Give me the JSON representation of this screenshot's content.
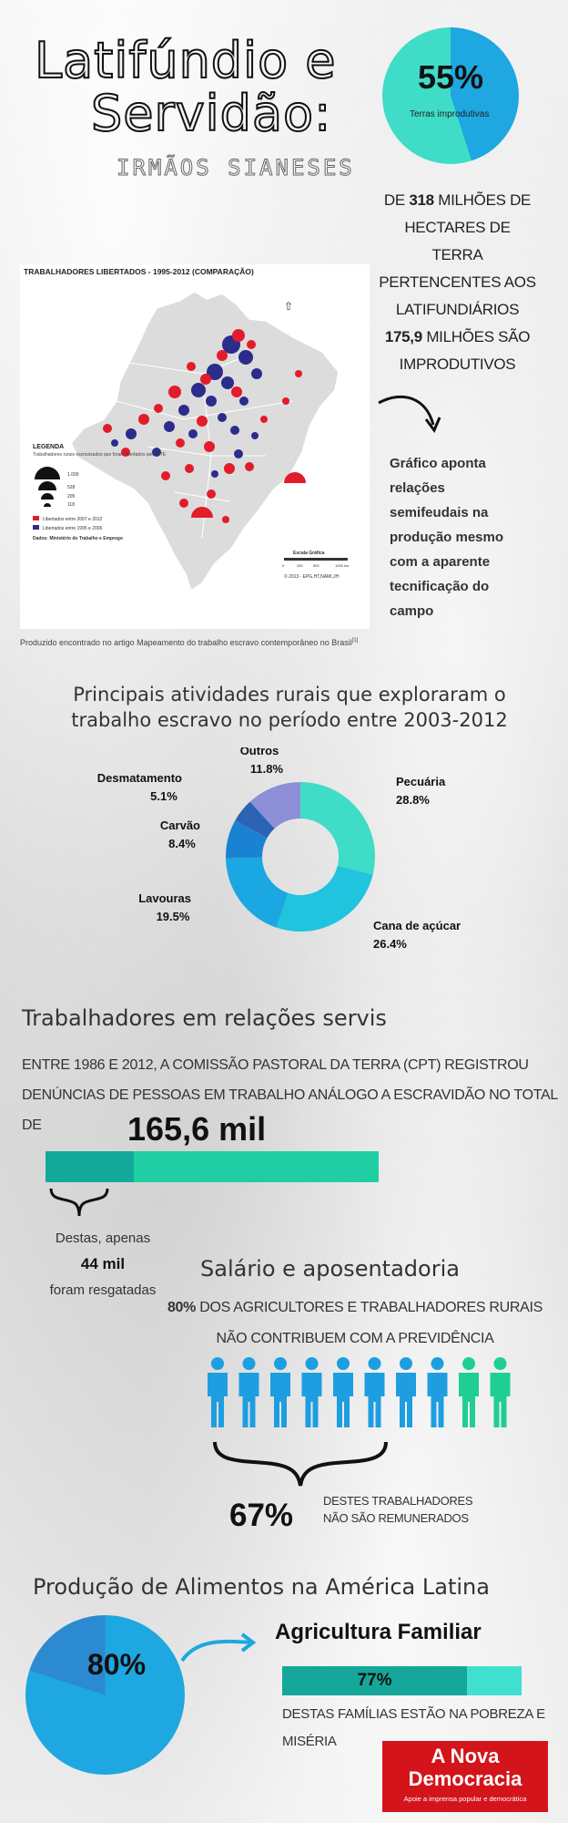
{
  "header": {
    "title_line1": "Latifúndio e",
    "title_line2": "Servidão:",
    "subtitle": "IRMÃOS SIANESES"
  },
  "unproductive": {
    "percent": "55%",
    "label": "Terras improdutivas",
    "text_a": "DE ",
    "total": "318",
    "text_b": " MILHÕES DE HECTARES DE TERRA PERTENCENTES AOS LATIFUNDIÁRIOS ",
    "unproductive_amount": "175,9",
    "text_c": " MILHÕES SÃO IMPRODUTIVOS",
    "colors": {
      "main": "#3fdcc8",
      "slice": "#1ea7e0"
    }
  },
  "map": {
    "title": "TRABALHADORES LIBERTADOS - 1995-2012 (COMPARAÇÃO)",
    "legend_title": "LEGENDA",
    "legend_subtitle": "Trabalhadores rurais escravizados que foram libertados pelo MTE",
    "legend_sizes": [
      "1.000",
      "528",
      "205",
      "118"
    ],
    "legend_red": "Libertados entre 2007 e 2012",
    "legend_blue": "Libertados entre 1995 e 2006",
    "source": "Dados: Ministério do Trabalho e Emprego",
    "credit": "© 2013 - EPG,HT,NAMI,JH",
    "scale_label": "Escala Gráfica",
    "scale_ticks": [
      "0",
      "250",
      "500",
      "1000 km"
    ],
    "caption": "Produzido encontrado no artigo Mapeamento do trabalho escravo contemporâneo no Brasil",
    "caption_ref": "[1]",
    "note": "Gráfico aponta relações semifeudais na produção mesmo com a aparente tecnificação do campo",
    "colors": {
      "red": "#e21c2a",
      "blue": "#2b2c8c"
    }
  },
  "activities": {
    "heading": "Principais atividades rurais que exploraram o trabalho escravo no período entre 2003-2012"
  },
  "chart_data": {
    "type": "pie",
    "title": "Principais atividades rurais que exploraram o trabalho escravo no período entre 2003-2012",
    "categories": [
      "Pecuária",
      "Cana de açúcar",
      "Lavouras",
      "Carvão",
      "Desmatamento",
      "Outros"
    ],
    "values": [
      28.8,
      26.4,
      19.5,
      8.4,
      5.1,
      11.8
    ],
    "labels": [
      "28.8%",
      "26.4%",
      "19.5%",
      "8.4%",
      "5.1%",
      "11.8%"
    ],
    "colors": [
      "#3fdcc8",
      "#20c4df",
      "#1aa7e2",
      "#1a83d1",
      "#2d63b5",
      "#8d8fd6"
    ],
    "donut": true
  },
  "workers": {
    "heading": "Trabalhadores em relações servis",
    "text": "ENTRE 1986 E 2012, A COMISSÃO PASTORAL DA TERRA (CPT) REGISTROU DENÚNCIAS DE PESSOAS EM TRABALHO ANÁLOGO A ESCRAVIDÃO NO TOTAL DE",
    "total": "165,6 mil",
    "rescued_prefix": "Destas, apenas",
    "rescued_value": "44 mil",
    "rescued_suffix": "foram resgatadas",
    "rescued_fraction": 0.266
  },
  "salary": {
    "heading": "Salário e aposentadoria",
    "percent": "80%",
    "text": " DOS AGRICULTORES E TRABALHADORES RURAIS NÃO CONTRIBUEM COM A PREVIDÊNCIA",
    "people_total": 10,
    "people_highlighted": 8,
    "unpaid_percent": "67%",
    "unpaid_label_1": "DESTES TRABALHADORES",
    "unpaid_label_2": "NÃO SÃO REMUNERADOS",
    "colors": {
      "blue": "#1e9ee0",
      "green": "#1fcf92"
    }
  },
  "food": {
    "heading": "Produção de Alimentos na América Latina",
    "percent": "80%",
    "percent_value": 0.8,
    "family_heading": "Agricultura Familiar",
    "poverty_percent": "77%",
    "poverty_fraction": 0.77,
    "poverty_text": "DESTAS FAMÍLIAS ESTÃO NA POBREZA E MISÉRIA"
  },
  "logo": {
    "line1": "A Nova",
    "line2": "Democracia",
    "tagline": "Apoie a imprensa popular e democrática"
  }
}
